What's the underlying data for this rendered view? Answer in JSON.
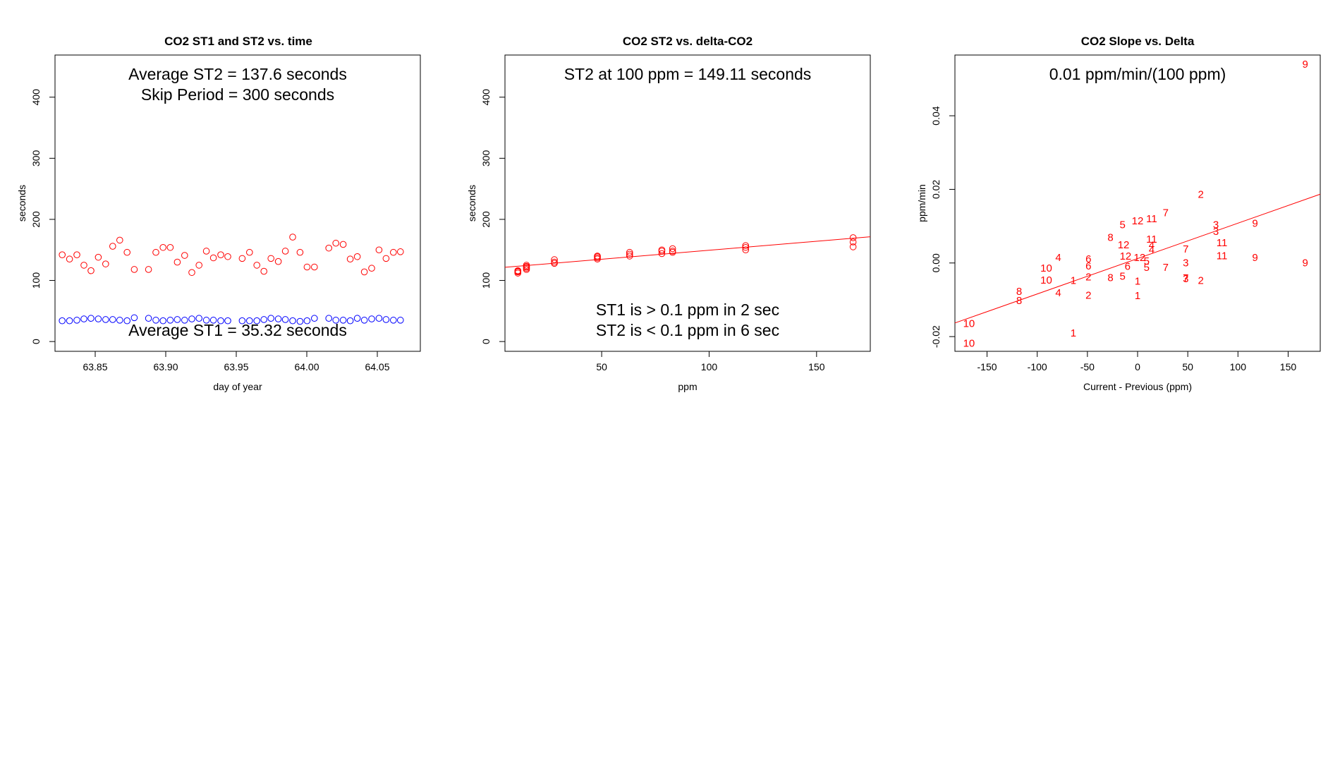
{
  "colors": {
    "st2": "#ff0000",
    "st1": "#0000ff",
    "fit": "#ff0000",
    "axis": "#000000"
  },
  "chart_data": [
    {
      "type": "scatter",
      "title": "CO2 ST1 and ST2 vs. time",
      "xlabel": "day of year",
      "ylabel": "seconds",
      "xlim": [
        63.8215,
        64.0805
      ],
      "ylim": [
        -16,
        469
      ],
      "xticks": [
        63.85,
        63.9,
        63.95,
        64.0,
        64.05
      ],
      "xtick_labels": [
        "63.85",
        "63.90",
        "63.95",
        "64.00",
        "64.05"
      ],
      "yticks": [
        0,
        100,
        200,
        300,
        400
      ],
      "ytick_labels": [
        "0",
        "100",
        "200",
        "300",
        "400"
      ],
      "annotations": [
        "Average ST2 =  137.6  seconds",
        "Skip Period =  300  seconds",
        "Average ST1 =  35.32  seconds"
      ],
      "series": [
        {
          "name": "ST2",
          "x": [
            63.8266,
            63.8318,
            63.837,
            63.842,
            63.847,
            63.8522,
            63.8574,
            63.8624,
            63.8674,
            63.8726,
            63.8777,
            63.8878,
            63.893,
            63.8981,
            63.9032,
            63.9082,
            63.9134,
            63.9185,
            63.9236,
            63.9288,
            63.9338,
            63.939,
            63.944,
            63.9542,
            63.9594,
            63.9646,
            63.9696,
            63.9746,
            63.9798,
            63.9848,
            63.99,
            63.9952,
            64.0002,
            64.0054,
            64.0156,
            64.0206,
            64.0258,
            64.0308,
            64.0358,
            64.0408,
            64.046,
            64.0512,
            64.0562,
            64.0614,
            64.0664
          ],
          "y": [
            142,
            135,
            142,
            125,
            116,
            138,
            127,
            156,
            166,
            146,
            118,
            118,
            146,
            154,
            154,
            130,
            141,
            113,
            125,
            148,
            137,
            142,
            139,
            136,
            146,
            125,
            115,
            136,
            131,
            148,
            171,
            146,
            122,
            122,
            153,
            161,
            159,
            135,
            139,
            114,
            120,
            150,
            136,
            146,
            147
          ]
        },
        {
          "name": "ST1",
          "x": [
            63.8266,
            63.8318,
            63.837,
            63.842,
            63.847,
            63.8522,
            63.8574,
            63.8624,
            63.8674,
            63.8726,
            63.8777,
            63.8878,
            63.893,
            63.8981,
            63.9032,
            63.9082,
            63.9134,
            63.9185,
            63.9236,
            63.9288,
            63.9338,
            63.939,
            63.944,
            63.9542,
            63.9594,
            63.9646,
            63.9696,
            63.9746,
            63.9798,
            63.9848,
            63.99,
            63.9952,
            64.0002,
            64.0054,
            64.0156,
            64.0206,
            64.0258,
            64.0308,
            64.0358,
            64.0408,
            64.046,
            64.0512,
            64.0562,
            64.0614,
            64.0664
          ],
          "y": [
            34,
            34,
            35,
            37,
            38,
            37,
            36,
            36,
            35,
            34,
            39,
            38,
            35,
            34,
            35,
            36,
            35,
            37,
            38,
            35,
            35,
            34,
            34,
            34,
            34,
            34,
            36,
            38,
            37,
            36,
            34,
            33,
            34,
            38,
            38,
            35,
            35,
            34,
            38,
            35,
            37,
            38,
            36,
            35,
            35
          ]
        }
      ]
    },
    {
      "type": "scatter",
      "title": "CO2 ST2 vs. delta-CO2",
      "xlabel": "ppm",
      "ylabel": "seconds",
      "xlim": [
        5,
        175
      ],
      "ylim": [
        -16,
        469
      ],
      "xticks": [
        50,
        100,
        150
      ],
      "xtick_labels": [
        "50",
        "100",
        "150"
      ],
      "yticks": [
        0,
        100,
        200,
        300,
        400
      ],
      "ytick_labels": [
        "0",
        "100",
        "200",
        "300",
        "400"
      ],
      "annotations": [
        "ST2 at 100 ppm =  149.11  seconds",
        "ST1 is > 0.1 ppm in 2 sec",
        "ST2 is < 0.1 ppm in 6 sec"
      ],
      "fit_line": {
        "x": [
          5,
          175
        ],
        "y": [
          121.5,
          171.5
        ]
      },
      "series": [
        {
          "name": "ST2",
          "x": [
            11,
            11,
            11,
            11,
            15,
            15,
            15,
            15,
            15,
            28,
            28,
            28,
            48,
            48,
            48,
            48,
            63,
            63,
            63,
            78,
            78,
            78,
            83,
            83,
            83,
            117,
            117,
            117,
            167,
            167,
            167
          ],
          "y": [
            112,
            114,
            115,
            116,
            118,
            120,
            122,
            123,
            125,
            128,
            130,
            134,
            135,
            137,
            139,
            140,
            140,
            143,
            146,
            144,
            148,
            150,
            146,
            148,
            152,
            150,
            154,
            157,
            155,
            163,
            170
          ]
        }
      ]
    },
    {
      "type": "scatter",
      "title": "CO2 Slope vs. Delta",
      "xlabel": "Current - Previous (ppm)",
      "ylabel": "ppm/min",
      "xlim": [
        -182,
        182
      ],
      "ylim": [
        -0.024,
        0.0565
      ],
      "xticks": [
        -150,
        -100,
        -50,
        0,
        50,
        100,
        150
      ],
      "xtick_labels": [
        "-150",
        "-100",
        "-50",
        "0",
        "50",
        "100",
        "150"
      ],
      "yticks": [
        -0.02,
        0.0,
        0.02,
        0.04
      ],
      "ytick_labels": [
        "-0.02",
        "0.00",
        "0.02",
        "0.04"
      ],
      "annotations": [
        "0.01  ppm/min/(100 ppm)"
      ],
      "fit_line": {
        "x": [
          -182,
          182
        ],
        "y": [
          -0.0163,
          0.0187
        ]
      },
      "points": [
        {
          "x": -168,
          "y": -0.0164,
          "label": "10"
        },
        {
          "x": -168,
          "y": -0.0218,
          "label": "10"
        },
        {
          "x": -118,
          "y": -0.0077,
          "label": "8"
        },
        {
          "x": -118,
          "y": -0.0102,
          "label": "8"
        },
        {
          "x": -91,
          "y": -0.0014,
          "label": "10"
        },
        {
          "x": -91,
          "y": -0.0046,
          "label": "10"
        },
        {
          "x": -79,
          "y": 0.0015,
          "label": "4"
        },
        {
          "x": -79,
          "y": -0.0081,
          "label": "4"
        },
        {
          "x": -64,
          "y": -0.0047,
          "label": "1"
        },
        {
          "x": -64,
          "y": -0.019,
          "label": "1"
        },
        {
          "x": -49,
          "y": 0.0011,
          "label": "6"
        },
        {
          "x": -49,
          "y": -0.0008,
          "label": "6"
        },
        {
          "x": -49,
          "y": -0.0038,
          "label": "2"
        },
        {
          "x": -49,
          "y": -0.0088,
          "label": "2"
        },
        {
          "x": -27,
          "y": 0.007,
          "label": "8"
        },
        {
          "x": -27,
          "y": -0.004,
          "label": "8"
        },
        {
          "x": -15,
          "y": 0.0104,
          "label": "5"
        },
        {
          "x": -15,
          "y": -0.0036,
          "label": "5"
        },
        {
          "x": -14,
          "y": 0.0049,
          "label": "12"
        },
        {
          "x": -12,
          "y": 0.0019,
          "label": "12"
        },
        {
          "x": -10,
          "y": -0.0009,
          "label": "6"
        },
        {
          "x": 0,
          "y": 0.0115,
          "label": "12"
        },
        {
          "x": 2,
          "y": 0.0015,
          "label": "12"
        },
        {
          "x": 0,
          "y": -0.0049,
          "label": "1"
        },
        {
          "x": 0,
          "y": -0.0089,
          "label": "1"
        },
        {
          "x": 9,
          "y": 0.0005,
          "label": "5"
        },
        {
          "x": 9,
          "y": -0.0012,
          "label": "5"
        },
        {
          "x": 14,
          "y": 0.012,
          "label": "11"
        },
        {
          "x": 14,
          "y": 0.0065,
          "label": "11"
        },
        {
          "x": 14,
          "y": 0.0048,
          "label": "4"
        },
        {
          "x": 14,
          "y": 0.0036,
          "label": "4"
        },
        {
          "x": 28,
          "y": 0.0137,
          "label": "7"
        },
        {
          "x": 28,
          "y": -0.0012,
          "label": "7"
        },
        {
          "x": 48,
          "y": 0.0038,
          "label": "7"
        },
        {
          "x": 48,
          "y": 0.0001,
          "label": "3"
        },
        {
          "x": 48,
          "y": -0.0041,
          "label": "7"
        },
        {
          "x": 48,
          "y": -0.0043,
          "label": "3"
        },
        {
          "x": 63,
          "y": 0.0186,
          "label": "2"
        },
        {
          "x": 63,
          "y": -0.0047,
          "label": "2"
        },
        {
          "x": 78,
          "y": 0.0104,
          "label": "3"
        },
        {
          "x": 78,
          "y": 0.0086,
          "label": "3"
        },
        {
          "x": 84,
          "y": 0.0055,
          "label": "11"
        },
        {
          "x": 84,
          "y": 0.002,
          "label": "11"
        },
        {
          "x": 117,
          "y": 0.0108,
          "label": "9"
        },
        {
          "x": 117,
          "y": 0.0015,
          "label": "9"
        },
        {
          "x": 167,
          "y": 0.054,
          "label": "9"
        },
        {
          "x": 167,
          "y": 0.0001,
          "label": "9"
        }
      ]
    }
  ]
}
